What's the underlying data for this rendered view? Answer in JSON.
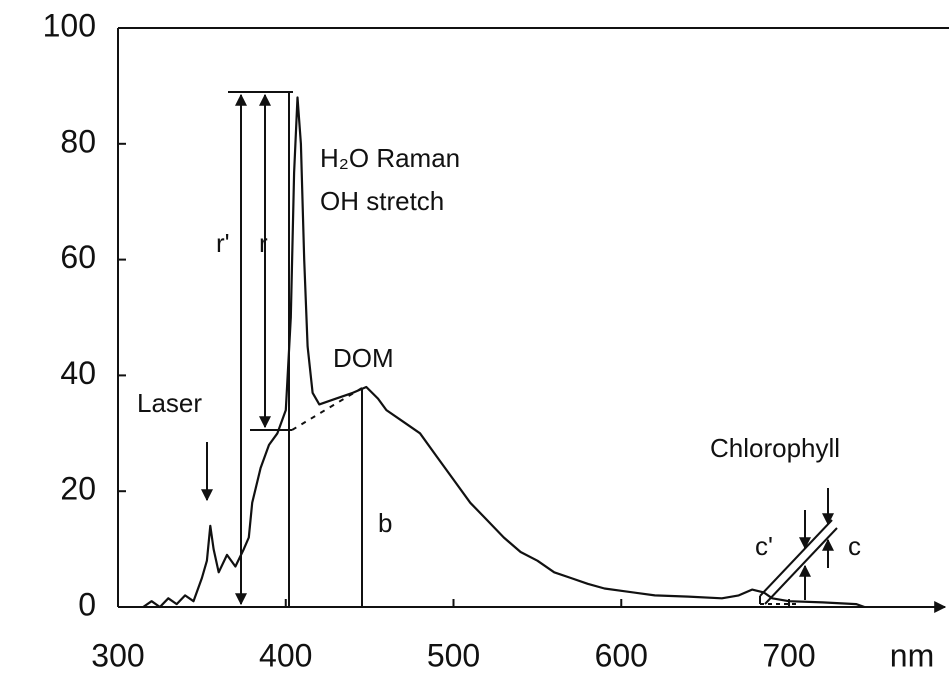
{
  "chart_data": {
    "type": "line",
    "x_label": "nm",
    "x": [
      315,
      320,
      325,
      330,
      335,
      340,
      345,
      350,
      353,
      355,
      357,
      360,
      365,
      370,
      375,
      378,
      380,
      385,
      390,
      395,
      400,
      403,
      405,
      407,
      409,
      411,
      413,
      416,
      420,
      430,
      440,
      448,
      455,
      460,
      470,
      480,
      490,
      500,
      510,
      520,
      530,
      540,
      550,
      560,
      570,
      580,
      590,
      600,
      620,
      640,
      660,
      670,
      678,
      685,
      690,
      700,
      720,
      740,
      745
    ],
    "values": [
      0,
      1,
      0,
      1.5,
      0.5,
      2,
      1,
      5,
      8,
      14,
      10,
      6,
      9,
      7,
      10,
      12,
      18,
      24,
      28,
      30,
      34,
      50,
      75,
      88,
      80,
      60,
      45,
      37,
      35,
      36,
      37,
      38,
      36,
      34,
      32,
      30,
      26,
      22,
      18,
      15,
      12,
      9.5,
      8,
      6,
      5,
      4,
      3.2,
      2.8,
      2,
      1.8,
      1.5,
      2,
      3,
      2.5,
      1.5,
      1,
      0.8,
      0.5,
      0
    ],
    "color": "#111111",
    "xlim": [
      300,
      790
    ],
    "ylim": [
      0,
      100
    ],
    "xticks": [
      300,
      400,
      500,
      600,
      700
    ],
    "yticks": [
      0,
      20,
      40,
      60,
      80,
      100
    ],
    "annotations": [
      "H₂O  Raman",
      "OH stretch",
      "DOM",
      "Laser",
      "Chlorophyll",
      "r'",
      "r",
      "b",
      "c'",
      "c"
    ]
  }
}
